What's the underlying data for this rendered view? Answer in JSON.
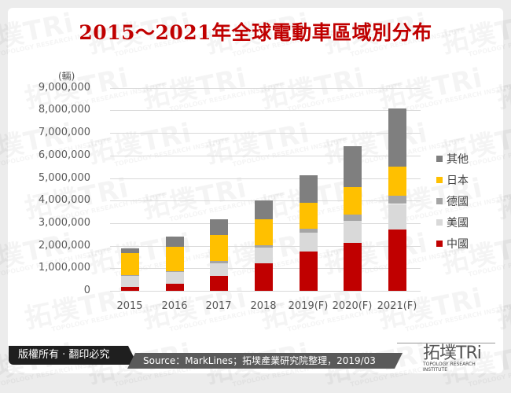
{
  "title": "2015～2021年全球電動車區域別分布",
  "chart_data": {
    "type": "bar",
    "stacked": true,
    "title": "2015～2021年全球電動車區域別分布",
    "xlabel": "",
    "ylabel": "(輛)",
    "ylim": [
      0,
      9000000
    ],
    "yticks": [
      "0",
      "1,000,000",
      "2,000,000",
      "3,000,000",
      "4,000,000",
      "5,000,000",
      "6,000,000",
      "7,000,000",
      "8,000,000",
      "9,000,000"
    ],
    "grid": true,
    "legend_position": "right",
    "categories": [
      "2015",
      "2016",
      "2017",
      "2018",
      "2019(F)",
      "2020(F)",
      "2021(F)"
    ],
    "series": [
      {
        "name": "中國",
        "color": "#c00000",
        "values": [
          160000,
          320000,
          670000,
          1210000,
          1740000,
          2120000,
          2730000
        ]
      },
      {
        "name": "美國",
        "color": "#d9d9d9",
        "values": [
          530000,
          520000,
          560000,
          720000,
          840000,
          990000,
          1120000
        ]
      },
      {
        "name": "德國",
        "color": "#a5a5a5",
        "values": [
          20000,
          30000,
          100000,
          90000,
          160000,
          270000,
          350000
        ]
      },
      {
        "name": "日本",
        "color": "#ffc000",
        "values": [
          950000,
          1090000,
          1140000,
          1150000,
          1150000,
          1210000,
          1300000
        ]
      },
      {
        "name": "其他",
        "color": "#7f7f7f",
        "values": [
          230000,
          450000,
          690000,
          840000,
          1240000,
          1830000,
          2580000
        ]
      }
    ],
    "totals": [
      1890000,
      2410000,
      3160000,
      4010000,
      5130000,
      6420000,
      8080000
    ]
  },
  "legend": [
    {
      "label": "其他",
      "color": "#7f7f7f"
    },
    {
      "label": "日本",
      "color": "#ffc000"
    },
    {
      "label": "德國",
      "color": "#a5a5a5"
    },
    {
      "label": "美國",
      "color": "#d9d9d9"
    },
    {
      "label": "中國",
      "color": "#c00000"
    }
  ],
  "footer": {
    "copyright": "版權所有 · 翻印必究",
    "source": "Source：MarkLines；拓墣產業研究院整理，2019/03",
    "logo_main": "拓墣",
    "logo_tri": "TRi",
    "logo_sub": "TOPOLOGY RESEARCH INSTITUTE"
  },
  "watermark": {
    "main": "拓墣TRi",
    "sub": "TOPOLOGY RESEARCH INSTITUTE"
  }
}
